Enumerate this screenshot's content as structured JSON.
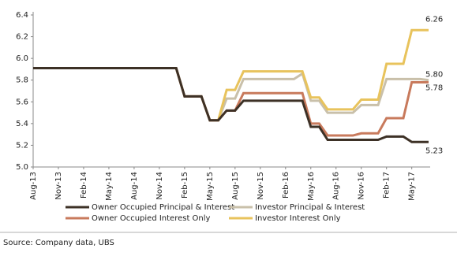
{
  "chart_data": {
    "type": "line",
    "categories": [
      "Aug-13",
      null,
      null,
      "Nov-13",
      null,
      null,
      "Feb-14",
      null,
      null,
      "May-14",
      null,
      null,
      "Aug-14",
      null,
      null,
      "Nov-14",
      null,
      null,
      "Feb-15",
      null,
      null,
      "May-15",
      null,
      null,
      "Aug-15",
      null,
      null,
      "Nov-15",
      null,
      null,
      "Feb-16",
      null,
      null,
      "May-16",
      null,
      null,
      "Aug-16",
      null,
      null,
      "Nov-16",
      null,
      null,
      "Feb-17",
      null,
      null,
      "May-17",
      null,
      null
    ],
    "ylim": [
      5.0,
      6.4
    ],
    "yticks": [
      {
        "value": 5.0,
        "label": "5.0"
      },
      {
        "value": 5.2,
        "label": "5.2"
      },
      {
        "value": 5.4,
        "label": "5.4"
      },
      {
        "value": 5.6,
        "label": "5.6"
      },
      {
        "value": 5.8,
        "label": "5.8"
      },
      {
        "value": 6.0,
        "label": "6.0"
      },
      {
        "value": 6.2,
        "label": "6.2"
      },
      {
        "value": 6.4,
        "label": "6.4"
      }
    ],
    "grid": false,
    "series": [
      {
        "name": "Owner Occupied Principal & Interest",
        "color": "#3d3126",
        "end_label": "5.23",
        "values": [
          5.91,
          5.91,
          5.91,
          5.91,
          5.91,
          5.91,
          5.91,
          5.91,
          5.91,
          5.91,
          5.91,
          5.91,
          5.91,
          5.91,
          5.91,
          5.91,
          5.91,
          5.91,
          5.65,
          5.65,
          5.65,
          5.43,
          5.43,
          5.52,
          5.52,
          5.61,
          5.61,
          5.61,
          5.61,
          5.61,
          5.61,
          5.61,
          5.61,
          5.37,
          5.37,
          5.25,
          5.25,
          5.25,
          5.25,
          5.25,
          5.25,
          5.25,
          5.28,
          5.28,
          5.28,
          5.23,
          5.23,
          5.23
        ]
      },
      {
        "name": "Investor Principal & Interest",
        "color": "#c9c0aa",
        "end_label": "5.80",
        "values": [
          5.91,
          5.91,
          5.91,
          5.91,
          5.91,
          5.91,
          5.91,
          5.91,
          5.91,
          5.91,
          5.91,
          5.91,
          5.91,
          5.91,
          5.91,
          5.91,
          5.91,
          5.91,
          5.65,
          5.65,
          5.65,
          5.43,
          5.43,
          5.63,
          5.63,
          5.81,
          5.81,
          5.81,
          5.81,
          5.81,
          5.81,
          5.81,
          5.86,
          5.61,
          5.61,
          5.5,
          5.5,
          5.5,
          5.5,
          5.57,
          5.57,
          5.57,
          5.81,
          5.81,
          5.81,
          5.81,
          5.81,
          5.8
        ]
      },
      {
        "name": "Owner Occupied Interest Only",
        "color": "#c87a5c",
        "end_label": "5.78",
        "values": [
          5.91,
          5.91,
          5.91,
          5.91,
          5.91,
          5.91,
          5.91,
          5.91,
          5.91,
          5.91,
          5.91,
          5.91,
          5.91,
          5.91,
          5.91,
          5.91,
          5.91,
          5.91,
          5.65,
          5.65,
          5.65,
          5.43,
          5.43,
          5.52,
          5.52,
          5.68,
          5.68,
          5.68,
          5.68,
          5.68,
          5.68,
          5.68,
          5.68,
          5.4,
          5.4,
          5.29,
          5.29,
          5.29,
          5.29,
          5.31,
          5.31,
          5.31,
          5.45,
          5.45,
          5.45,
          5.78,
          5.78,
          5.78
        ]
      },
      {
        "name": "Investor Interest Only",
        "color": "#e8c35c",
        "end_label": "6.26",
        "values": [
          5.91,
          5.91,
          5.91,
          5.91,
          5.91,
          5.91,
          5.91,
          5.91,
          5.91,
          5.91,
          5.91,
          5.91,
          5.91,
          5.91,
          5.91,
          5.91,
          5.91,
          5.91,
          5.65,
          5.65,
          5.65,
          5.43,
          5.43,
          5.71,
          5.71,
          5.88,
          5.88,
          5.88,
          5.88,
          5.88,
          5.88,
          5.88,
          5.88,
          5.64,
          5.64,
          5.53,
          5.53,
          5.53,
          5.53,
          5.62,
          5.62,
          5.62,
          5.95,
          5.95,
          5.95,
          6.26,
          6.26,
          6.26
        ]
      }
    ],
    "source": "Source:  Company data, UBS"
  }
}
